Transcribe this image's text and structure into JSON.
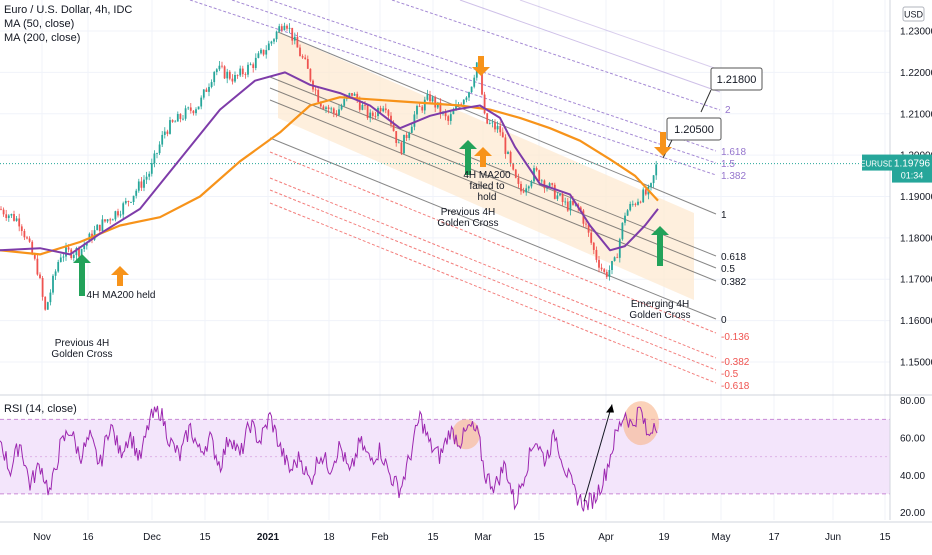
{
  "header": {
    "symbol_title": "Euro / U.S. Dollar, 4h, IDC",
    "ma50_label": "MA (50, close)",
    "ma200_label": "MA (200, close)",
    "currency_badge": "USD"
  },
  "price_tag": {
    "symbol": "EURUSD",
    "price": "1.19796",
    "countdown": "01:34"
  },
  "rsi_label": "RSI (14, close)",
  "colors": {
    "candle_up": "#26a69a",
    "candle_down": "#ef5350",
    "ma50": "#7e3ca9",
    "ma200": "#f7931a",
    "rsi": "#9c27b0",
    "rsi_band": "#f3e5fb",
    "fib_upper": "#9575cd",
    "fib_lower": "#ef5350",
    "arrow_green": "#22a25a",
    "arrow_orange": "#f7931a",
    "channel_fill": "#fde9d2"
  },
  "chart_data": [
    {
      "type": "candlestick",
      "title": "Euro / U.S. Dollar, 4h, IDC",
      "x_axis_ticks": [
        "Nov",
        "16",
        "Dec",
        "15",
        "2021",
        "18",
        "Feb",
        "15",
        "Mar",
        "15",
        "Apr",
        "19",
        "May",
        "17",
        "Jun",
        "15"
      ],
      "y_axis_ticks": [
        "1.23000",
        "1.22000",
        "1.21000",
        "1.20000",
        "1.19000",
        "1.18000",
        "1.17000",
        "1.16000",
        "1.15000"
      ],
      "ylim": [
        1.1425,
        1.2375
      ],
      "last_price": 1.19796,
      "price_path": [
        [
          0,
          1.187
        ],
        [
          20,
          1.184
        ],
        [
          38,
          1.172
        ],
        [
          45,
          1.162
        ],
        [
          60,
          1.176
        ],
        [
          80,
          1.177
        ],
        [
          100,
          1.183
        ],
        [
          125,
          1.188
        ],
        [
          150,
          1.196
        ],
        [
          165,
          1.206
        ],
        [
          185,
          1.21
        ],
        [
          200,
          1.2125
        ],
        [
          215,
          1.221
        ],
        [
          235,
          1.2185
        ],
        [
          255,
          1.2225
        ],
        [
          270,
          1.227
        ],
        [
          285,
          1.233
        ],
        [
          295,
          1.227
        ],
        [
          305,
          1.222
        ],
        [
          320,
          1.213
        ],
        [
          335,
          1.21
        ],
        [
          352,
          1.215
        ],
        [
          370,
          1.209
        ],
        [
          385,
          1.213
        ],
        [
          400,
          1.201
        ],
        [
          415,
          1.21
        ],
        [
          430,
          1.214
        ],
        [
          448,
          1.208
        ],
        [
          460,
          1.213
        ],
        [
          470,
          1.216
        ],
        [
          478,
          1.2235
        ],
        [
          485,
          1.208
        ],
        [
          500,
          1.206
        ],
        [
          512,
          1.196
        ],
        [
          520,
          1.191
        ],
        [
          535,
          1.196
        ],
        [
          550,
          1.192
        ],
        [
          565,
          1.188
        ],
        [
          580,
          1.187
        ],
        [
          595,
          1.176
        ],
        [
          605,
          1.171
        ],
        [
          615,
          1.174
        ],
        [
          625,
          1.186
        ],
        [
          640,
          1.19
        ],
        [
          650,
          1.191
        ],
        [
          657,
          1.198
        ]
      ],
      "series": [
        {
          "name": "MA (50, close)",
          "values": [
            [
              0,
              1.177
            ],
            [
              40,
              1.1775
            ],
            [
              70,
              1.176
            ],
            [
              100,
              1.181
            ],
            [
              140,
              1.187
            ],
            [
              180,
              1.199
            ],
            [
              220,
              1.211
            ],
            [
              255,
              1.218
            ],
            [
              285,
              1.22
            ],
            [
              310,
              1.217
            ],
            [
              340,
              1.215
            ],
            [
              370,
              1.212
            ],
            [
              400,
              1.2065
            ],
            [
              430,
              1.2095
            ],
            [
              455,
              1.211
            ],
            [
              480,
              1.212
            ],
            [
              500,
              1.209
            ],
            [
              515,
              1.202
            ],
            [
              540,
              1.193
            ],
            [
              570,
              1.1905
            ],
            [
              590,
              1.183
            ],
            [
              610,
              1.177
            ],
            [
              625,
              1.178
            ],
            [
              645,
              1.183
            ],
            [
              658,
              1.187
            ]
          ]
        },
        {
          "name": "MA (200, close)",
          "values": [
            [
              0,
              1.177
            ],
            [
              40,
              1.176
            ],
            [
              80,
              1.179
            ],
            [
              120,
              1.183
            ],
            [
              160,
              1.185
            ],
            [
              200,
              1.19
            ],
            [
              240,
              1.1985
            ],
            [
              280,
              1.2055
            ],
            [
              310,
              1.212
            ],
            [
              340,
              1.214
            ],
            [
              370,
              1.2135
            ],
            [
              400,
              1.213
            ],
            [
              430,
              1.2125
            ],
            [
              460,
              1.212
            ],
            [
              490,
              1.211
            ],
            [
              520,
              1.209
            ],
            [
              550,
              1.2065
            ],
            [
              580,
              1.2035
            ],
            [
              610,
              1.199
            ],
            [
              635,
              1.195
            ],
            [
              658,
              1.189
            ]
          ]
        }
      ],
      "price_callouts": [
        "1.21800",
        "1.20500"
      ],
      "fib_levels_upper": [
        "2",
        "1.618",
        "1.5",
        "1.382",
        "1"
      ],
      "fib_levels_lower": [
        "0.618",
        "0.5",
        "0.382",
        "0"
      ],
      "fib_levels_extension": [
        "-0.136",
        "-0.382",
        "-0.5",
        "-0.618"
      ],
      "annotations": [
        {
          "text": "4H MA200 held"
        },
        {
          "text": "Previous 4H\nGolden Cross"
        },
        {
          "text": "4H MA200\nfailed to\nhold"
        },
        {
          "text": "Previous 4H\nGolden Cross"
        },
        {
          "text": "Emerging 4H\nGolden Cross"
        }
      ]
    },
    {
      "type": "line",
      "title": "RSI (14, close)",
      "y_axis_ticks": [
        "80.00",
        "60.00",
        "40.00",
        "20.00"
      ],
      "ylim": [
        16,
        82
      ],
      "band": [
        30,
        70
      ],
      "series": [
        {
          "name": "RSI (14, close)",
          "values": [
            [
              0,
              60
            ],
            [
              10,
              42
            ],
            [
              20,
              58
            ],
            [
              30,
              35
            ],
            [
              40,
              46
            ],
            [
              50,
              30
            ],
            [
              60,
              55
            ],
            [
              70,
              65
            ],
            [
              80,
              50
            ],
            [
              90,
              60
            ],
            [
              100,
              45
            ],
            [
              110,
              68
            ],
            [
              120,
              52
            ],
            [
              130,
              62
            ],
            [
              140,
              48
            ],
            [
              150,
              70
            ],
            [
              160,
              75
            ],
            [
              170,
              58
            ],
            [
              180,
              50
            ],
            [
              190,
              66
            ],
            [
              200,
              52
            ],
            [
              210,
              60
            ],
            [
              220,
              45
            ],
            [
              230,
              62
            ],
            [
              240,
              50
            ],
            [
              250,
              68
            ],
            [
              260,
              58
            ],
            [
              270,
              72
            ],
            [
              280,
              55
            ],
            [
              290,
              42
            ],
            [
              300,
              50
            ],
            [
              310,
              36
            ],
            [
              320,
              52
            ],
            [
              330,
              44
            ],
            [
              340,
              56
            ],
            [
              350,
              40
            ],
            [
              360,
              58
            ],
            [
              370,
              48
            ],
            [
              380,
              54
            ],
            [
              390,
              40
            ],
            [
              400,
              32
            ],
            [
              410,
              50
            ],
            [
              420,
              72
            ],
            [
              430,
              56
            ],
            [
              440,
              50
            ],
            [
              450,
              64
            ],
            [
              460,
              58
            ],
            [
              470,
              66
            ],
            [
              478,
              62
            ],
            [
              485,
              40
            ],
            [
              495,
              34
            ],
            [
              505,
              46
            ],
            [
              515,
              24
            ],
            [
              525,
              42
            ],
            [
              535,
              60
            ],
            [
              545,
              48
            ],
            [
              555,
              62
            ],
            [
              565,
              44
            ],
            [
              575,
              30
            ],
            [
              585,
              24
            ],
            [
              595,
              28
            ],
            [
              605,
              40
            ],
            [
              615,
              60
            ],
            [
              625,
              74
            ],
            [
              632,
              66
            ],
            [
              640,
              76
            ],
            [
              648,
              60
            ],
            [
              655,
              70
            ],
            [
              658,
              66
            ]
          ]
        }
      ]
    }
  ]
}
